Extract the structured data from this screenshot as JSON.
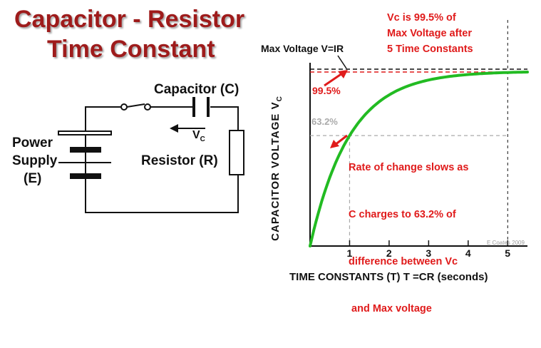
{
  "title": {
    "line1": "Capacitor - Resistor",
    "line2": "Time Constant"
  },
  "circuit": {
    "capacitor_label": "Capacitor (C)",
    "vc_label": "V",
    "vc_subscript": "C",
    "resistor_label": "Resistor (R)",
    "supply_line1": "Power",
    "supply_line2": "Supply",
    "supply_line3": "(E)"
  },
  "chart_data": {
    "type": "line",
    "series": [
      {
        "values_note": "",
        "x": [
          0,
          0.25,
          0.5,
          0.75,
          1,
          1.5,
          2,
          2.5,
          3,
          3.5,
          4,
          4.5,
          5,
          5.5
        ],
        "y": [
          0,
          22.1,
          39.3,
          52.8,
          63.2,
          77.7,
          86.5,
          91.8,
          95.0,
          97.0,
          98.2,
          98.9,
          99.5,
          99.6
        ]
      }
    ],
    "x_ticks": [
      "1",
      "2",
      "3",
      "4",
      "5"
    ],
    "xlim": [
      0,
      5.5
    ],
    "ylim": [
      0,
      100
    ],
    "xlabel": "TIME CONSTANTS (T) T =CR (seconds)",
    "ylabel": "CAPACITOR VOLTAGE V",
    "ylabel_subscript": "C",
    "line_color": "#22bb22",
    "annotations": {
      "max_voltage": "Max Voltage V=IR",
      "p995": "99.5%",
      "p632": "63.2%",
      "note_top": [
        "Vc is 99.5% of",
        "Max Voltage after",
        "5 Time Constants"
      ],
      "note_mid": [
        "Rate of change slows as",
        "C charges to 63.2% of",
        "difference between Vc",
        " and Max voltage"
      ],
      "credit": "E Coates 2009"
    }
  },
  "colors": {
    "title": "#9e1b1b",
    "annotation": "#e01b1b",
    "curve": "#22bb22",
    "guide": "#aaaaaa"
  }
}
